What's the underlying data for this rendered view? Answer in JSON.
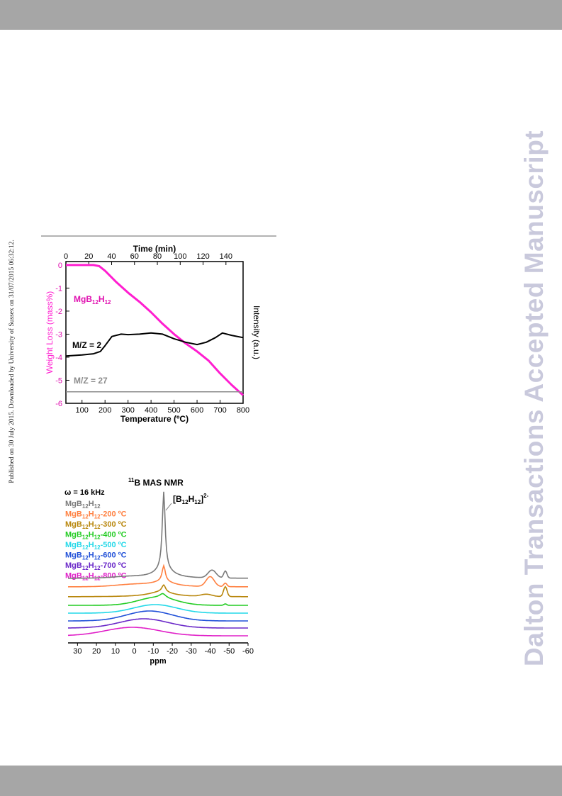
{
  "side_note": "Published on 30 July 2015. Downloaded by University of Sussex on 31/07/2015 06:32:12.",
  "watermark": "Dalton Transactions Accepted Manuscript",
  "colors": {
    "bar": "#a6a6a6",
    "watermark": "#c9c9dc"
  },
  "chart_data": [
    {
      "type": "line",
      "xlabel": "Temperature (ºC)",
      "x_ticks": [
        100,
        200,
        300,
        400,
        500,
        600,
        700,
        800
      ],
      "xlim": [
        30,
        800
      ],
      "x2label": "Time (min)",
      "x2_ticks": [
        0,
        20,
        40,
        60,
        80,
        100,
        120,
        140
      ],
      "x2lim": [
        0,
        155
      ],
      "ylabel": "Weight Loss (mass%)",
      "y_ticks": [
        0,
        -1,
        -2,
        -3,
        -4,
        -5,
        -6
      ],
      "ylim": [
        -6,
        0.15
      ],
      "y2label": "Intensity (a.u.)",
      "series": [
        {
          "name": "MgB12H12",
          "label_base": "MgB",
          "label_sub1": "12",
          "label_mid": "H",
          "label_sub2": "12",
          "color": "#ff1ed0",
          "axis": "left",
          "x": [
            30,
            100,
            150,
            175,
            200,
            250,
            300,
            350,
            400,
            450,
            500,
            550,
            600,
            650,
            700,
            750,
            800
          ],
          "y": [
            0,
            0,
            0,
            -0.05,
            -0.25,
            -0.75,
            -1.2,
            -1.6,
            -2.05,
            -2.55,
            -3.0,
            -3.4,
            -3.75,
            -4.15,
            -4.7,
            -5.2,
            -5.65
          ]
        },
        {
          "name": "M/Z = 2",
          "color": "#000000",
          "axis": "right",
          "x": [
            30,
            100,
            150,
            180,
            200,
            230,
            270,
            300,
            350,
            400,
            450,
            500,
            550,
            600,
            640,
            680,
            710,
            750,
            800
          ],
          "y": [
            -3.95,
            -3.9,
            -3.85,
            -3.75,
            -3.5,
            -3.1,
            -3.0,
            -3.02,
            -3.0,
            -2.95,
            -3.0,
            -3.2,
            -3.35,
            -3.45,
            -3.35,
            -3.15,
            -2.95,
            -3.05,
            -3.15
          ]
        },
        {
          "name": "M/Z = 27",
          "color": "#8c8c8c",
          "axis": "right",
          "x": [
            30,
            800
          ],
          "y": [
            -5.5,
            -5.5
          ]
        }
      ]
    },
    {
      "type": "line",
      "title_sup": "11",
      "title": "B MAS NMR",
      "annotation": "[B12H12]2-",
      "annotation_parts": {
        "open": "[B",
        "sub1": "12",
        "mid": "H",
        "sub2": "12",
        "close": "]",
        "sup": "2-"
      },
      "freq_label": "ω = 16 kHz",
      "xlabel": "ppm",
      "x_ticks": [
        30,
        20,
        10,
        0,
        -10,
        -20,
        -30,
        -40,
        -50,
        -60
      ],
      "xlim": [
        35,
        -60
      ],
      "series": [
        {
          "name": "MgB12H12",
          "temp": "",
          "color": "#7a7a7a"
        },
        {
          "name": "MgB12H12-200 ºC",
          "temp": "-200 ºC",
          "color": "#ff8040"
        },
        {
          "name": "MgB12H12-300 ºC",
          "temp": "-300 ºC",
          "color": "#b8860b"
        },
        {
          "name": "MgB12H12-400 ºC",
          "temp": "-400 ºC",
          "color": "#22cc22"
        },
        {
          "name": "MgB12H12-500 ºC",
          "temp": "-500 ºC",
          "color": "#22d8e8"
        },
        {
          "name": "MgB12H12-600 ºC",
          "temp": "-600 ºC",
          "color": "#2050d8"
        },
        {
          "name": "MgB12H12-700 ºC",
          "temp": "-700 ºC",
          "color": "#6a28c8"
        },
        {
          "name": "MgB12H12-800 ºC",
          "temp": "-800 ºC",
          "color": "#e020c8"
        }
      ]
    }
  ]
}
